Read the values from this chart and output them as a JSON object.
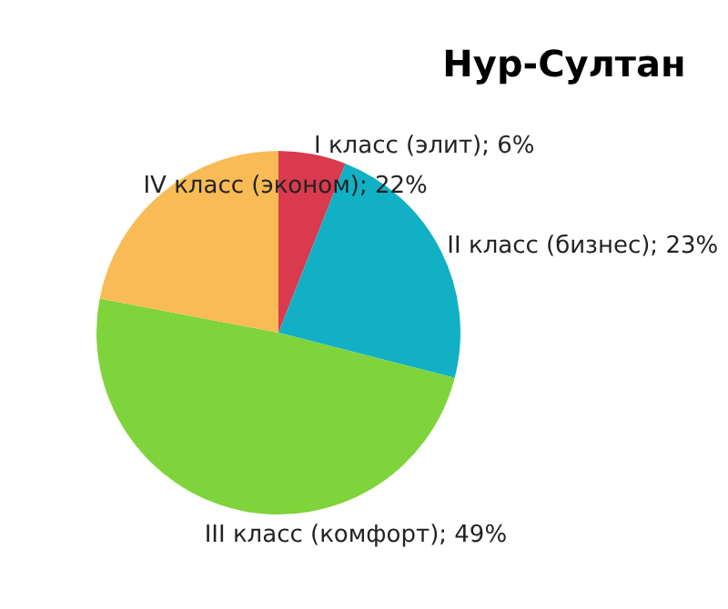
{
  "chart_data": {
    "type": "pie",
    "title": "Нур-Султан",
    "categories": [
      "I класс (элит)",
      "II класс (бизнес)",
      "III класс (комфорт)",
      "IV класс (эконом)"
    ],
    "values": [
      6,
      23,
      49,
      22
    ],
    "value_labels": [
      "6%",
      "23%",
      "49%",
      "22%"
    ],
    "colors": [
      "#da3a4e",
      "#12b0c4",
      "#7fd33b",
      "#f8bb55"
    ],
    "legend": false
  }
}
